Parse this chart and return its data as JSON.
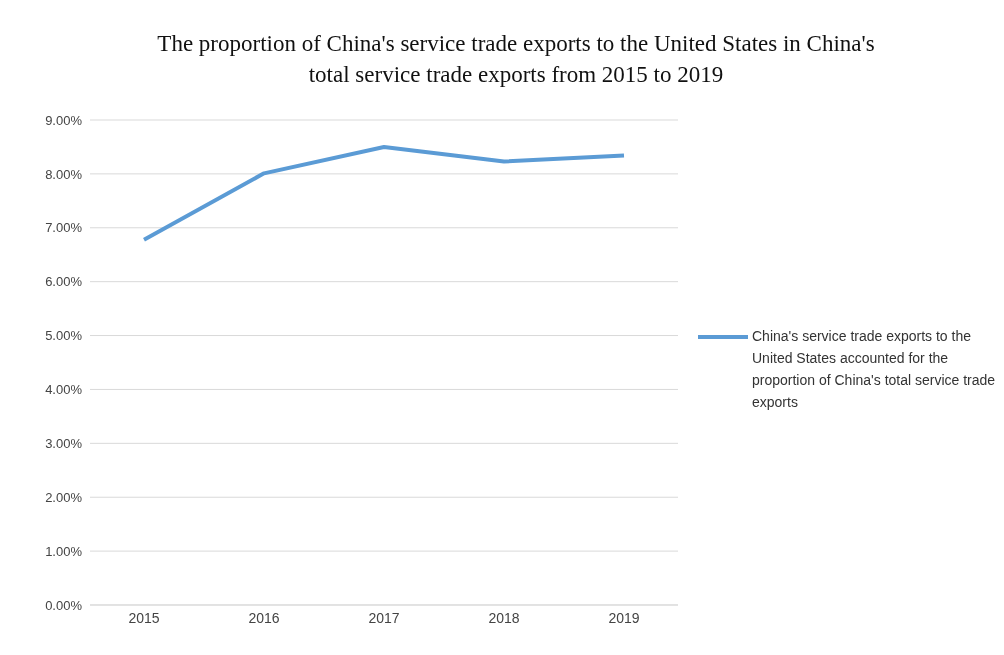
{
  "chart_data": {
    "type": "line",
    "title": "The proportion of China's service trade exports to the United States in China's total service trade exports from 2015 to 2019",
    "categories": [
      "2015",
      "2016",
      "2017",
      "2018",
      "2019"
    ],
    "series": [
      {
        "name": "China's service trade exports to the United States accounted for the proportion of China's total service trade exports",
        "color": "#5b9bd5",
        "values": [
          6.78,
          8.01,
          8.5,
          8.23,
          8.34
        ]
      }
    ],
    "ylim": [
      0,
      9
    ],
    "yticks": [
      {
        "value": 0,
        "label": "0.00%"
      },
      {
        "value": 1,
        "label": "1.00%"
      },
      {
        "value": 2,
        "label": "2.00%"
      },
      {
        "value": 3,
        "label": "3.00%"
      },
      {
        "value": 4,
        "label": "4.00%"
      },
      {
        "value": 5,
        "label": "5.00%"
      },
      {
        "value": 6,
        "label": "6.00%"
      },
      {
        "value": 7,
        "label": "7.00%"
      },
      {
        "value": 8,
        "label": "8.00%"
      },
      {
        "value": 9,
        "label": "9.00%"
      }
    ],
    "grid": "y",
    "legend": "right",
    "marker": "none",
    "line_style": "solid"
  }
}
